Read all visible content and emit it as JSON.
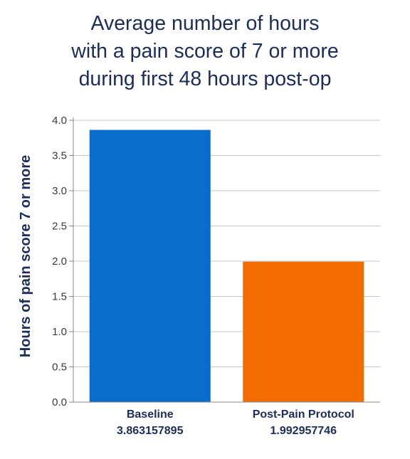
{
  "chart_data": {
    "type": "bar",
    "title_lines": [
      "Average number of hours",
      "with a pain score of 7 or more",
      "during first 48 hours post-op"
    ],
    "xlabel": "",
    "ylabel": "Hours of pain score 7 or more",
    "ylim": [
      0,
      4.0
    ],
    "yticks": [
      "0.0",
      "0.5",
      "1.0",
      "1.5",
      "2.0",
      "2.5",
      "3.0",
      "3.5",
      "4.0"
    ],
    "grid": true,
    "categories": [
      "Baseline",
      "Post-Pain Protocol"
    ],
    "values": [
      3.863157895,
      1.992957746
    ],
    "value_labels": [
      "3.863157895",
      "1.992957746"
    ],
    "colors": [
      "#0a6ccb",
      "#f36c00"
    ]
  }
}
